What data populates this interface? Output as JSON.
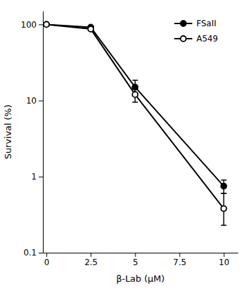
{
  "chart_data": {
    "type": "line",
    "xlabel": "β-Lab (μM)",
    "ylabel": "Survival (%)",
    "log": "y",
    "grid": false,
    "legend": "upper right",
    "xlim": [
      -0.2,
      10.8
    ],
    "ylim": [
      0.1,
      150
    ],
    "xticks": [
      0,
      2.5,
      5,
      7.5,
      10
    ],
    "yticks": [
      0.1,
      1,
      10,
      100
    ],
    "series": [
      {
        "name": "FSaII",
        "color": "#000000",
        "marker": "circle",
        "line_style": "solid",
        "x": [
          0,
          2.5,
          5.0,
          10.0
        ],
        "values": [
          100,
          92,
          15,
          0.75
        ],
        "yerr_lower": [
          0,
          2,
          3.5,
          0.15
        ],
        "yerr_upper": [
          0,
          2,
          3.5,
          0.15
        ]
      },
      {
        "name": "A549",
        "color": "#000000",
        "marker": "circle-open",
        "line_style": "solid",
        "x": [
          0,
          2.5,
          5.0,
          10.0
        ],
        "values": [
          100,
          87,
          12,
          0.38
        ],
        "yerr_lower": [
          0,
          3,
          2.5,
          0.15
        ],
        "yerr_upper": [
          0,
          3,
          2.5,
          0.22
        ]
      }
    ]
  }
}
